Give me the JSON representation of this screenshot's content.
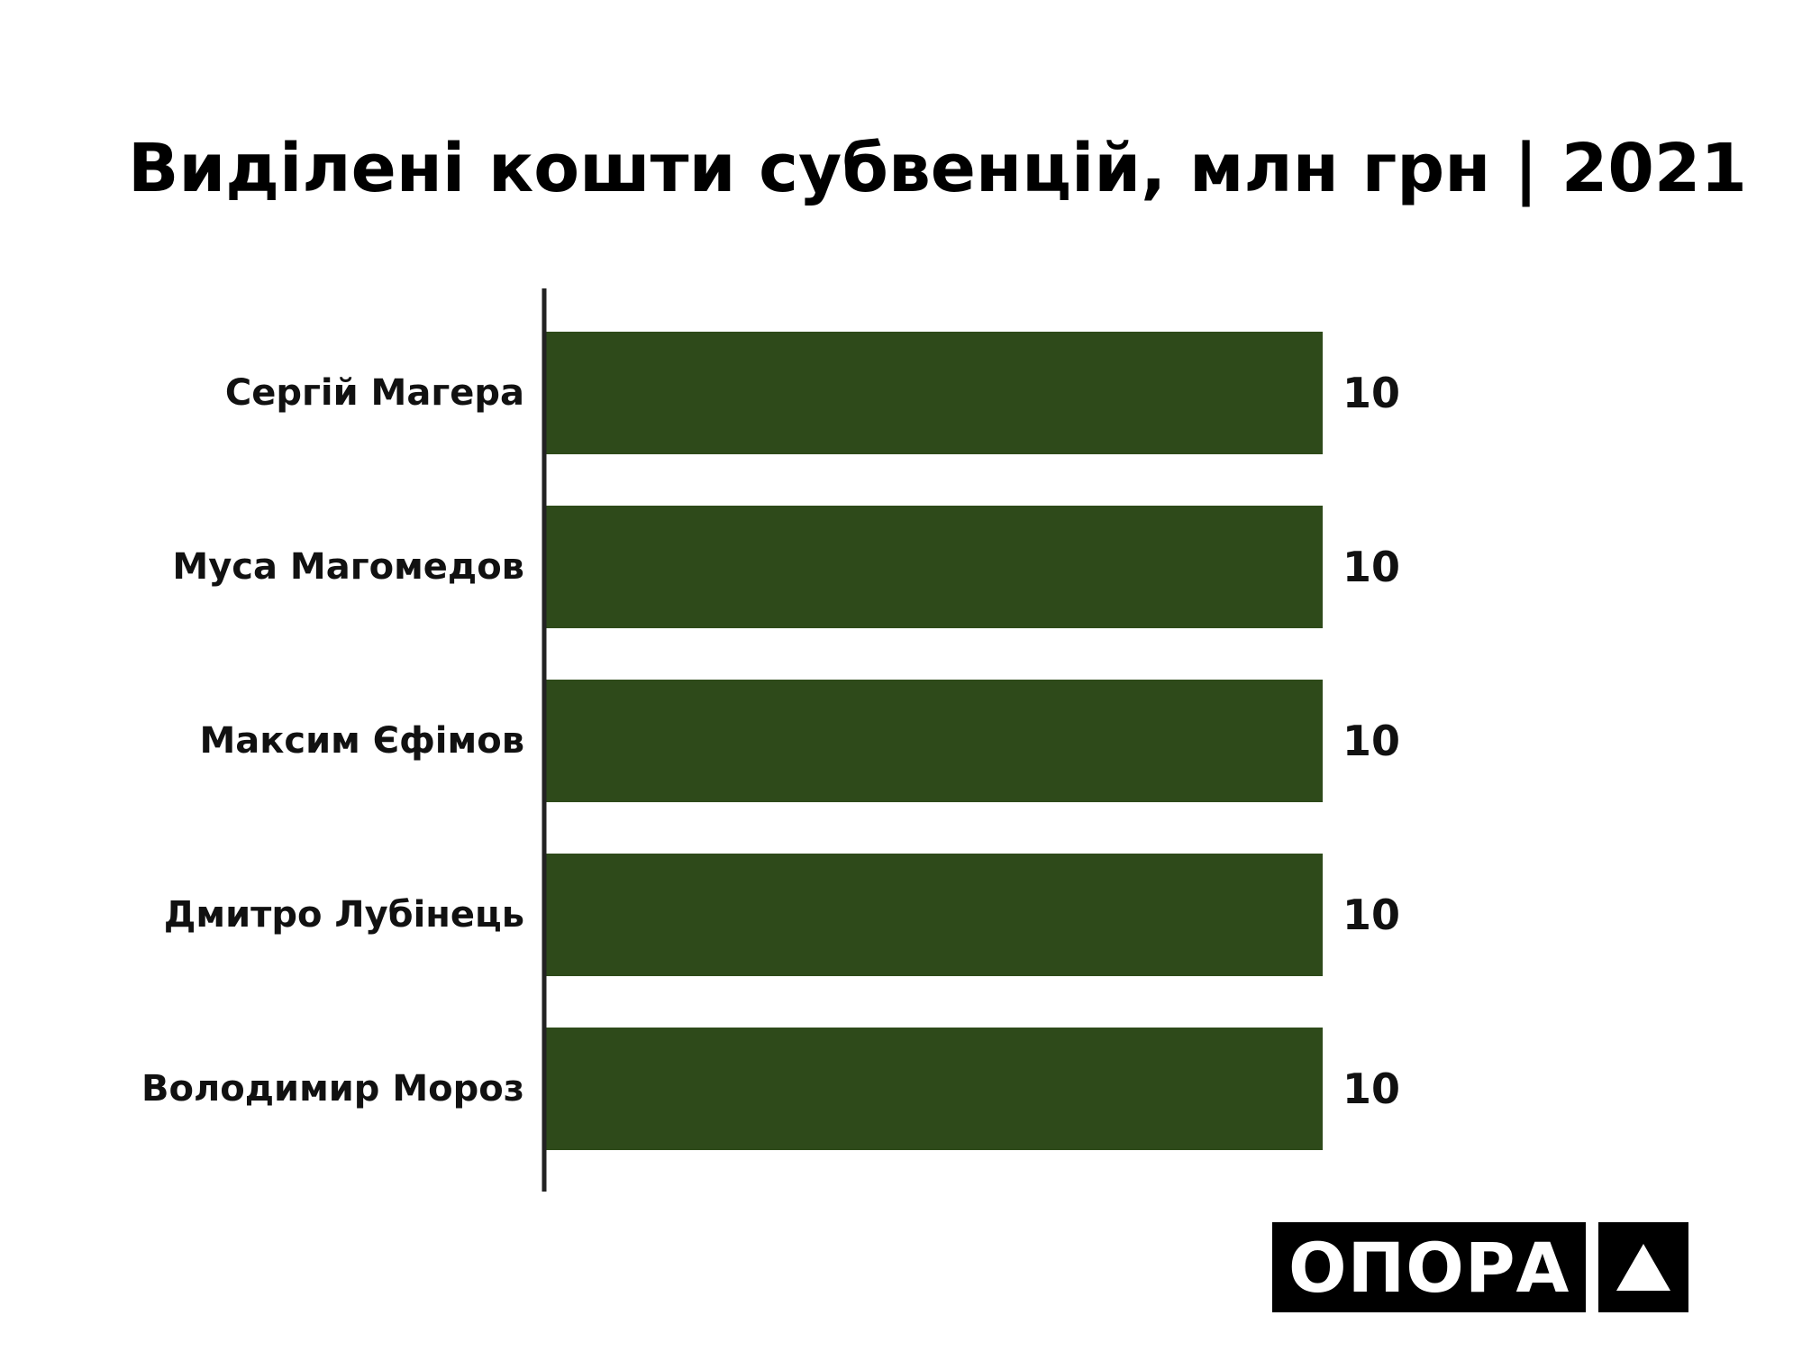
{
  "chart_data": {
    "type": "bar",
    "orientation": "horizontal",
    "title": "Виділені кошти субвенцій, млн грн | 2021",
    "categories": [
      "Сергій Магера",
      "Муса Магомедов",
      "Максим Єфімов",
      "Дмитро Лубінець",
      "Володимир Мороз"
    ],
    "values": [
      10,
      10,
      10,
      10,
      10
    ],
    "xlim": [
      0,
      10
    ],
    "grid": false,
    "legend": "none",
    "colors": {
      "bar": "#2e4a1a",
      "axis": "#222222",
      "text": "#111111"
    }
  },
  "logo": {
    "text": "ОПОРА",
    "mark_icon": "triangle-up-icon"
  }
}
